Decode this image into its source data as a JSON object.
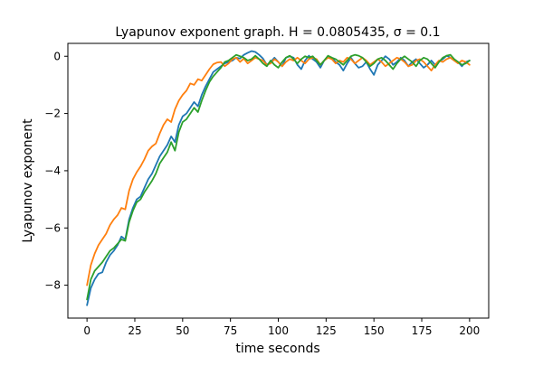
{
  "chart_data": {
    "type": "line",
    "title": "Lyapunov exponent graph. H = 0.0805435, σ = 0.1",
    "xlabel": "time seconds",
    "ylabel": "Lyapunov exponent",
    "xlim": [
      -10,
      210
    ],
    "ylim": [
      -9.15,
      0.45
    ],
    "xticks": [
      0,
      25,
      50,
      75,
      100,
      125,
      150,
      175,
      200
    ],
    "yticks": [
      -8,
      -6,
      -4,
      -2,
      0
    ],
    "grid": false,
    "legend": "none",
    "series": [
      {
        "color": "#1f77b4",
        "x": [
          0,
          2,
          4,
          6,
          8,
          10,
          12,
          14,
          16,
          18,
          20,
          22,
          24,
          26,
          28,
          30,
          32,
          34,
          36,
          38,
          40,
          42,
          44,
          46,
          48,
          50,
          52,
          54,
          56,
          58,
          60,
          62,
          64,
          66,
          68,
          70,
          72,
          74,
          76,
          78,
          80,
          82,
          84,
          86,
          88,
          90,
          92,
          94,
          96,
          98,
          100,
          102,
          104,
          106,
          108,
          110,
          112,
          114,
          116,
          118,
          120,
          122,
          124,
          126,
          128,
          130,
          132,
          134,
          136,
          138,
          140,
          142,
          144,
          146,
          148,
          150,
          152,
          154,
          156,
          158,
          160,
          162,
          164,
          166,
          168,
          170,
          172,
          174,
          176,
          178,
          180,
          182,
          184,
          186,
          188,
          190,
          192,
          194,
          196,
          198,
          200
        ],
        "y": [
          -8.7,
          -8.1,
          -7.8,
          -7.6,
          -7.55,
          -7.2,
          -6.95,
          -6.8,
          -6.6,
          -6.3,
          -6.4,
          -5.7,
          -5.3,
          -5.0,
          -4.9,
          -4.6,
          -4.3,
          -4.1,
          -3.8,
          -3.5,
          -3.3,
          -3.1,
          -2.8,
          -3.0,
          -2.4,
          -2.1,
          -2.0,
          -1.8,
          -1.6,
          -1.75,
          -1.35,
          -1.05,
          -0.8,
          -0.55,
          -0.45,
          -0.35,
          -0.25,
          -0.2,
          -0.15,
          -0.05,
          -0.08,
          0.05,
          0.12,
          0.18,
          0.15,
          0.05,
          -0.08,
          -0.3,
          -0.2,
          -0.05,
          -0.2,
          -0.35,
          -0.05,
          0.0,
          -0.05,
          -0.3,
          -0.45,
          -0.15,
          0.02,
          -0.1,
          -0.2,
          -0.4,
          -0.15,
          0.0,
          -0.05,
          -0.2,
          -0.3,
          -0.5,
          -0.25,
          -0.05,
          -0.25,
          -0.4,
          -0.35,
          -0.2,
          -0.45,
          -0.65,
          -0.3,
          -0.15,
          0.0,
          -0.1,
          -0.3,
          -0.2,
          -0.05,
          -0.15,
          -0.35,
          -0.2,
          -0.1,
          -0.25,
          -0.4,
          -0.3,
          -0.15,
          -0.3,
          -0.2,
          -0.1,
          0.02,
          -0.05,
          -0.15,
          -0.2,
          -0.35,
          -0.2,
          -0.15
        ]
      },
      {
        "color": "#ff7f0e",
        "x": [
          0,
          2,
          4,
          6,
          8,
          10,
          12,
          14,
          16,
          18,
          20,
          22,
          24,
          26,
          28,
          30,
          32,
          34,
          36,
          38,
          40,
          42,
          44,
          46,
          48,
          50,
          52,
          54,
          56,
          58,
          60,
          62,
          64,
          66,
          68,
          70,
          72,
          74,
          76,
          78,
          80,
          82,
          84,
          86,
          88,
          90,
          92,
          94,
          96,
          98,
          100,
          102,
          104,
          106,
          108,
          110,
          112,
          114,
          116,
          118,
          120,
          122,
          124,
          126,
          128,
          130,
          132,
          134,
          136,
          138,
          140,
          142,
          144,
          146,
          148,
          150,
          152,
          154,
          156,
          158,
          160,
          162,
          164,
          166,
          168,
          170,
          172,
          174,
          176,
          178,
          180,
          182,
          184,
          186,
          188,
          190,
          192,
          194,
          196,
          198,
          200
        ],
        "y": [
          -8.0,
          -7.3,
          -6.9,
          -6.6,
          -6.4,
          -6.2,
          -5.9,
          -5.7,
          -5.55,
          -5.3,
          -5.35,
          -4.7,
          -4.3,
          -4.05,
          -3.85,
          -3.6,
          -3.3,
          -3.15,
          -3.05,
          -2.7,
          -2.4,
          -2.2,
          -2.3,
          -1.85,
          -1.55,
          -1.35,
          -1.2,
          -0.95,
          -1.0,
          -0.8,
          -0.85,
          -0.65,
          -0.45,
          -0.28,
          -0.22,
          -0.2,
          -0.35,
          -0.25,
          -0.1,
          -0.05,
          -0.2,
          -0.08,
          -0.25,
          -0.15,
          -0.05,
          -0.1,
          -0.15,
          -0.3,
          -0.25,
          -0.1,
          -0.2,
          -0.35,
          -0.2,
          -0.1,
          -0.15,
          -0.05,
          -0.15,
          -0.25,
          -0.1,
          -0.05,
          -0.1,
          -0.3,
          -0.15,
          -0.05,
          -0.1,
          -0.25,
          -0.15,
          -0.2,
          -0.05,
          -0.1,
          -0.25,
          -0.15,
          -0.05,
          -0.15,
          -0.3,
          -0.2,
          -0.1,
          -0.2,
          -0.35,
          -0.25,
          -0.15,
          -0.05,
          -0.1,
          -0.2,
          -0.35,
          -0.3,
          -0.15,
          -0.1,
          -0.2,
          -0.35,
          -0.5,
          -0.3,
          -0.15,
          -0.2,
          -0.1,
          -0.05,
          -0.15,
          -0.25,
          -0.15,
          -0.2,
          -0.3
        ]
      },
      {
        "color": "#2ca02c",
        "x": [
          0,
          2,
          4,
          6,
          8,
          10,
          12,
          14,
          16,
          18,
          20,
          22,
          24,
          26,
          28,
          30,
          32,
          34,
          36,
          38,
          40,
          42,
          44,
          46,
          48,
          50,
          52,
          54,
          56,
          58,
          60,
          62,
          64,
          66,
          68,
          70,
          72,
          74,
          76,
          78,
          80,
          82,
          84,
          86,
          88,
          90,
          92,
          94,
          96,
          98,
          100,
          102,
          104,
          106,
          108,
          110,
          112,
          114,
          116,
          118,
          120,
          122,
          124,
          126,
          128,
          130,
          132,
          134,
          136,
          138,
          140,
          142,
          144,
          146,
          148,
          150,
          152,
          154,
          156,
          158,
          160,
          162,
          164,
          166,
          168,
          170,
          172,
          174,
          176,
          178,
          180,
          182,
          184,
          186,
          188,
          190,
          192,
          194,
          196,
          198,
          200
        ],
        "y": [
          -8.5,
          -7.8,
          -7.5,
          -7.35,
          -7.2,
          -7.0,
          -6.8,
          -6.7,
          -6.55,
          -6.4,
          -6.45,
          -5.8,
          -5.4,
          -5.1,
          -5.0,
          -4.75,
          -4.55,
          -4.35,
          -4.1,
          -3.75,
          -3.55,
          -3.35,
          -3.0,
          -3.3,
          -2.65,
          -2.3,
          -2.2,
          -2.0,
          -1.8,
          -1.95,
          -1.55,
          -1.2,
          -0.9,
          -0.7,
          -0.55,
          -0.4,
          -0.2,
          -0.15,
          -0.05,
          0.05,
          0.0,
          -0.05,
          -0.15,
          -0.1,
          0.02,
          -0.1,
          -0.25,
          -0.35,
          -0.15,
          -0.3,
          -0.4,
          -0.2,
          -0.05,
          0.02,
          -0.1,
          -0.25,
          -0.1,
          0.0,
          -0.05,
          0.0,
          -0.15,
          -0.3,
          -0.15,
          0.02,
          -0.05,
          -0.1,
          -0.2,
          -0.3,
          -0.15,
          0.0,
          0.05,
          0.02,
          -0.05,
          -0.2,
          -0.35,
          -0.25,
          -0.1,
          -0.05,
          -0.15,
          -0.3,
          -0.45,
          -0.25,
          -0.1,
          0.0,
          -0.1,
          -0.2,
          -0.35,
          -0.15,
          -0.05,
          -0.1,
          -0.25,
          -0.4,
          -0.2,
          -0.05,
          0.02,
          0.05,
          -0.1,
          -0.2,
          -0.3,
          -0.25,
          -0.15
        ]
      }
    ]
  }
}
